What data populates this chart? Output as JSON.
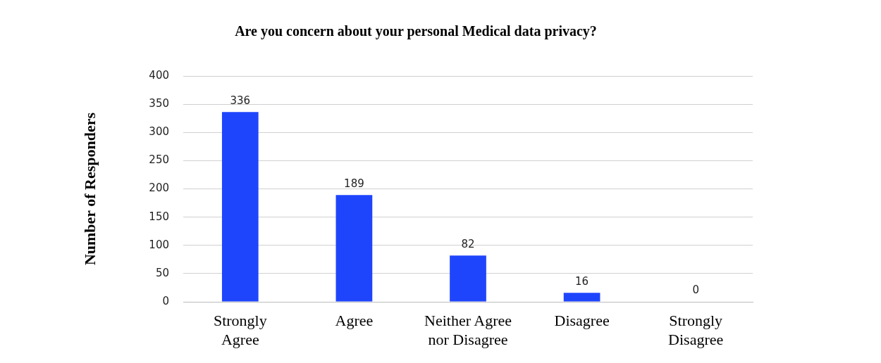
{
  "chart_data": {
    "type": "bar",
    "title": "Are you concern about your personal Medical data privacy?",
    "ylabel": "Number of Responders",
    "categories": [
      "Strongly Agree",
      "Agree",
      "Neither Agree nor Disagree",
      "Disagree",
      "Strongly Disagree"
    ],
    "values": [
      336,
      189,
      82,
      16,
      0
    ],
    "color": "#1f45fc",
    "ylim": [
      0,
      400
    ],
    "yticks": [
      0,
      50,
      100,
      150,
      200,
      250,
      300,
      350,
      400
    ],
    "grid": "y",
    "data_labels": true,
    "legend": false
  }
}
